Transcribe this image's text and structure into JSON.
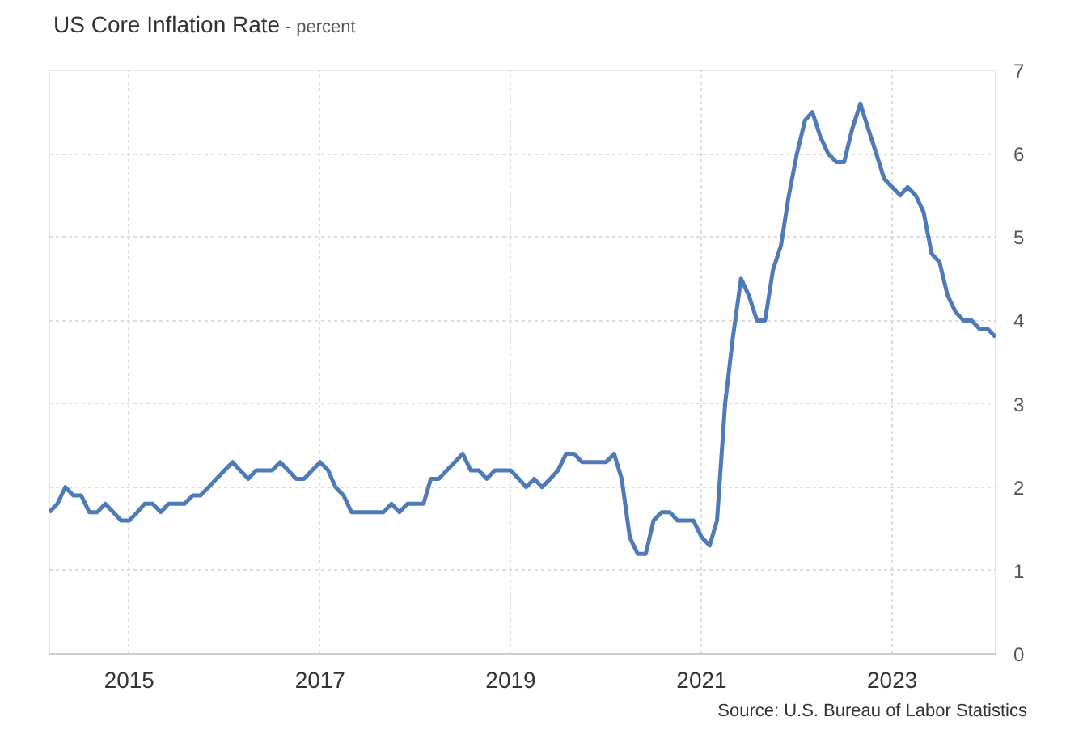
{
  "chart_data": {
    "type": "line",
    "title": "US Core Inflation Rate",
    "subtitle": "- percent",
    "x": [
      "2014-03",
      "2014-04",
      "2014-05",
      "2014-06",
      "2014-07",
      "2014-08",
      "2014-09",
      "2014-10",
      "2014-11",
      "2014-12",
      "2015-01",
      "2015-02",
      "2015-03",
      "2015-04",
      "2015-05",
      "2015-06",
      "2015-07",
      "2015-08",
      "2015-09",
      "2015-10",
      "2015-11",
      "2015-12",
      "2016-01",
      "2016-02",
      "2016-03",
      "2016-04",
      "2016-05",
      "2016-06",
      "2016-07",
      "2016-08",
      "2016-09",
      "2016-10",
      "2016-11",
      "2016-12",
      "2017-01",
      "2017-02",
      "2017-03",
      "2017-04",
      "2017-05",
      "2017-06",
      "2017-07",
      "2017-08",
      "2017-09",
      "2017-10",
      "2017-11",
      "2017-12",
      "2018-01",
      "2018-02",
      "2018-03",
      "2018-04",
      "2018-05",
      "2018-06",
      "2018-07",
      "2018-08",
      "2018-09",
      "2018-10",
      "2018-11",
      "2018-12",
      "2019-01",
      "2019-02",
      "2019-03",
      "2019-04",
      "2019-05",
      "2019-06",
      "2019-07",
      "2019-08",
      "2019-09",
      "2019-10",
      "2019-11",
      "2019-12",
      "2020-01",
      "2020-02",
      "2020-03",
      "2020-04",
      "2020-05",
      "2020-06",
      "2020-07",
      "2020-08",
      "2020-09",
      "2020-10",
      "2020-11",
      "2020-12",
      "2021-01",
      "2021-02",
      "2021-03",
      "2021-04",
      "2021-05",
      "2021-06",
      "2021-07",
      "2021-08",
      "2021-09",
      "2021-10",
      "2021-11",
      "2021-12",
      "2022-01",
      "2022-02",
      "2022-03",
      "2022-04",
      "2022-05",
      "2022-06",
      "2022-07",
      "2022-08",
      "2022-09",
      "2022-10",
      "2022-11",
      "2022-12",
      "2023-01",
      "2023-02",
      "2023-03",
      "2023-04",
      "2023-05",
      "2023-06",
      "2023-07",
      "2023-08",
      "2023-09",
      "2023-10",
      "2023-11",
      "2023-12",
      "2024-01",
      "2024-02"
    ],
    "series": [
      {
        "color": "#4f7ab8",
        "values": [
          1.7,
          1.8,
          2.0,
          1.9,
          1.9,
          1.7,
          1.7,
          1.8,
          1.7,
          1.6,
          1.6,
          1.7,
          1.8,
          1.8,
          1.7,
          1.8,
          1.8,
          1.8,
          1.9,
          1.9,
          2.0,
          2.1,
          2.2,
          2.3,
          2.2,
          2.1,
          2.2,
          2.2,
          2.2,
          2.3,
          2.2,
          2.1,
          2.1,
          2.2,
          2.3,
          2.2,
          2.0,
          1.9,
          1.7,
          1.7,
          1.7,
          1.7,
          1.7,
          1.8,
          1.7,
          1.8,
          1.8,
          1.8,
          2.1,
          2.1,
          2.2,
          2.3,
          2.4,
          2.2,
          2.2,
          2.1,
          2.2,
          2.2,
          2.2,
          2.1,
          2.0,
          2.1,
          2.0,
          2.1,
          2.2,
          2.4,
          2.4,
          2.3,
          2.3,
          2.3,
          2.3,
          2.4,
          2.1,
          1.4,
          1.2,
          1.2,
          1.6,
          1.7,
          1.7,
          1.6,
          1.6,
          1.6,
          1.4,
          1.3,
          1.6,
          3.0,
          3.8,
          4.5,
          4.3,
          4.0,
          4.0,
          4.6,
          4.9,
          5.5,
          6.0,
          6.4,
          6.5,
          6.2,
          6.0,
          5.9,
          5.9,
          6.3,
          6.6,
          6.3,
          6.0,
          5.7,
          5.6,
          5.5,
          5.6,
          5.5,
          5.3,
          4.8,
          4.7,
          4.3,
          4.1,
          4.0,
          4.0,
          3.9,
          3.9,
          3.8
        ]
      }
    ],
    "xlim": [
      "2014-03",
      "2024-02"
    ],
    "xticks": [
      "2015",
      "2017",
      "2019",
      "2021",
      "2023"
    ],
    "ylim": [
      0,
      7
    ],
    "yticks": [
      0,
      1,
      2,
      3,
      4,
      5,
      6,
      7
    ],
    "grid": true,
    "line_style": "solid",
    "marker": "none",
    "annotations": [
      "Source: U.S. Bureau of Labor Statistics"
    ]
  }
}
